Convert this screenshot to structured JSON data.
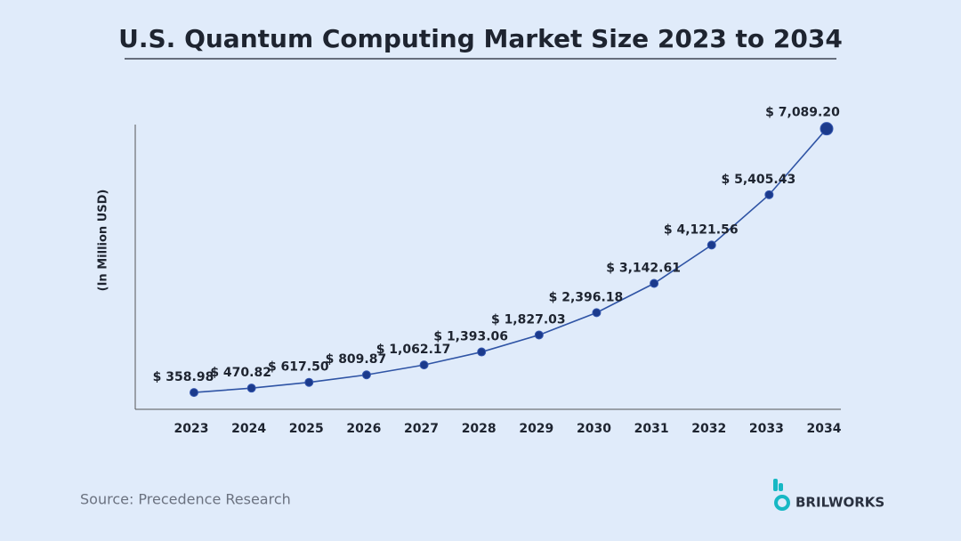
{
  "chart_data": {
    "type": "line",
    "title": "U.S. Quantum Computing Market Size 2023 to 2034",
    "y_label": "(In Million USD)",
    "categories": [
      "2023",
      "2024",
      "2025",
      "2026",
      "2027",
      "2028",
      "2029",
      "2030",
      "2031",
      "2032",
      "2033",
      "2034"
    ],
    "values": [
      358.98,
      470.82,
      617.5,
      809.87,
      1062.17,
      1393.06,
      1827.03,
      2396.18,
      3142.61,
      4121.56,
      5405.43,
      7089.2
    ],
    "value_labels": [
      "$ 358.98",
      "$ 470.82",
      "$ 617.50",
      "$ 809.87",
      "$ 1,062.17",
      "$ 1,393.06",
      "$ 1,827.03",
      "$ 2,396.18",
      "$ 3,142.61",
      "$ 4,121.56",
      "$ 5,405.43",
      "$ 7,089.20"
    ],
    "color": "#2f54a5",
    "ylim": [
      -70,
      7150
    ],
    "source": "Source: Precedence Research"
  },
  "brand": "BRILWORKS"
}
